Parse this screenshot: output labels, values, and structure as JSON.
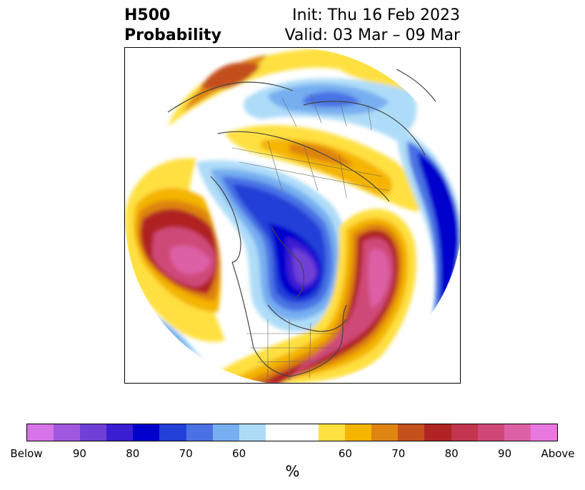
{
  "title": {
    "line1": "H500",
    "line2": "Probability",
    "init": "Init: Thu 16 Feb 2023",
    "valid": "Valid: 03 Mar – 09 Mar"
  },
  "colorbar": {
    "unit": "%",
    "colors": [
      "#d674e8",
      "#a158e0",
      "#7040d6",
      "#3a1ed2",
      "#0000cd",
      "#2340d8",
      "#4a72e4",
      "#76aef0",
      "#aedcf8",
      "#ffffff",
      "#ffffff",
      "#ffe040",
      "#f4b400",
      "#de8410",
      "#c4501c",
      "#b02424",
      "#c23650",
      "#cf4878",
      "#dd60a6",
      "#e878e0"
    ],
    "labels": [
      "Below",
      "90",
      "80",
      "70",
      "60",
      "60",
      "70",
      "80",
      "90",
      "Above"
    ]
  }
}
